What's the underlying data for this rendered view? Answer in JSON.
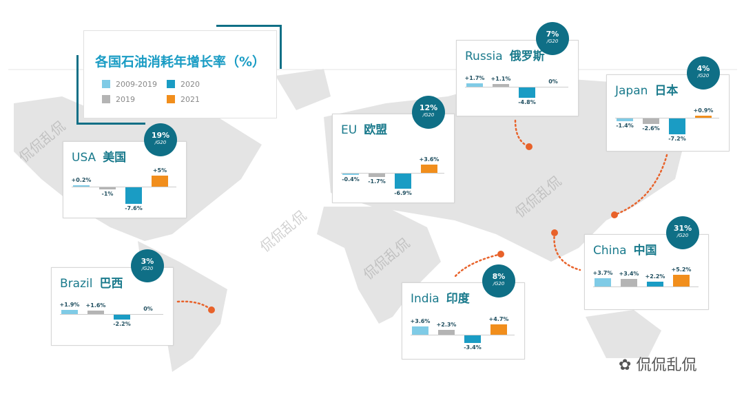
{
  "chart_data": {
    "type": "bar",
    "title": "各国石油消耗年增长率（%）",
    "legend": [
      {
        "name": "2009-2019",
        "color": "#7fcbe6"
      },
      {
        "name": "2020",
        "color": "#1a9cc4"
      },
      {
        "name": "2019",
        "color": "#b4b4b4"
      },
      {
        "name": "2021",
        "color": "#f18e1c"
      }
    ],
    "series_order": [
      "2009-2019",
      "2019",
      "2020",
      "2021"
    ],
    "colors": [
      "#7fcbe6",
      "#b4b4b4",
      "#1a9cc4",
      "#f18e1c"
    ],
    "panels": [
      {
        "name_en": "USA",
        "name_zh": "美国",
        "share": "19%",
        "share_unit": "/G20",
        "values": [
          0.2,
          -1,
          -7.6,
          5
        ],
        "labels": [
          "+0.2%",
          "-1%",
          "-7.6%",
          "+5%"
        ]
      },
      {
        "name_en": "EU",
        "name_zh": "欧盟",
        "share": "12%",
        "share_unit": "/G20",
        "values": [
          -0.4,
          -1.7,
          -6.9,
          3.6
        ],
        "labels": [
          "-0.4%",
          "-1.7%",
          "-6.9%",
          "+3.6%"
        ]
      },
      {
        "name_en": "Russia",
        "name_zh": "俄罗斯",
        "share": "7%",
        "share_unit": "/G20",
        "values": [
          1.7,
          1.1,
          -4.8,
          0
        ],
        "labels": [
          "+1.7%",
          "+1.1%",
          "-4.8%",
          "0%"
        ]
      },
      {
        "name_en": "Japan",
        "name_zh": "日本",
        "share": "4%",
        "share_unit": "/G20",
        "values": [
          -1.4,
          -2.6,
          -7.2,
          0.9
        ],
        "labels": [
          "-1.4%",
          "-2.6%",
          "-7.2%",
          "+0.9%"
        ]
      },
      {
        "name_en": "Brazil",
        "name_zh": "巴西",
        "share": "3%",
        "share_unit": "/G20",
        "values": [
          1.9,
          1.6,
          -2.2,
          0
        ],
        "labels": [
          "+1.9%",
          "+1.6%",
          "-2.2%",
          "0%"
        ]
      },
      {
        "name_en": "India",
        "name_zh": "印度",
        "share": "8%",
        "share_unit": "/G20",
        "values": [
          3.6,
          2.3,
          -3.4,
          4.7
        ],
        "labels": [
          "+3.6%",
          "+2.3%",
          "-3.4%",
          "+4.7%"
        ]
      },
      {
        "name_en": "China",
        "name_zh": "中国",
        "share": "31%",
        "share_unit": "/G20",
        "values": [
          3.7,
          3.4,
          2.2,
          5.2
        ],
        "labels": [
          "+3.7%",
          "+3.4%",
          "+2.2%",
          "+5.2%"
        ]
      }
    ]
  },
  "watermark": "侃侃乱侃",
  "footer": "侃侃乱侃",
  "connector_color": "#e8622a"
}
